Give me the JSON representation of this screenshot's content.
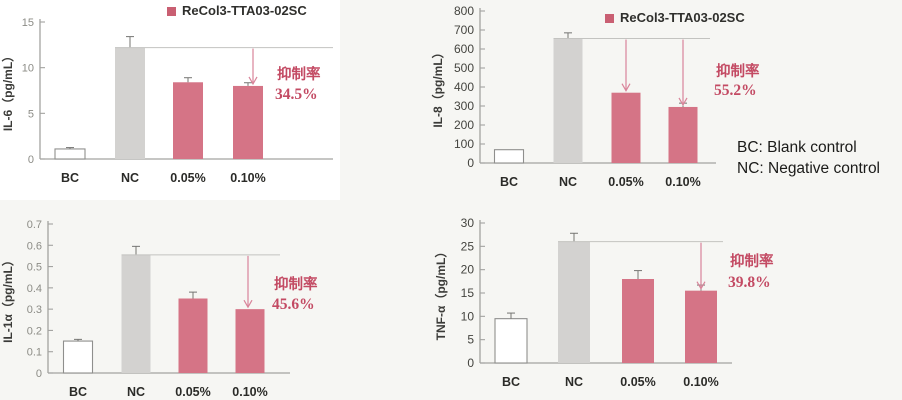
{
  "page": {
    "background": "#f6f6f3",
    "note": {
      "line1": "BC: Blank control",
      "line2": "NC: Negative control"
    }
  },
  "legend": {
    "label": "ReCol3-TTA03-02SC",
    "swatch_color": "#c95f72"
  },
  "colors": {
    "treated_bar": "#d57486",
    "control_bar": "#d3d2d0",
    "blank_bar_fill": "#ffffff",
    "blank_bar_stroke": "#8f8f8d",
    "axis": "#a3a3a0",
    "ref_line": "#c3c3c0",
    "arrow": "#d9849a",
    "annotation_text": "#c34a63",
    "error_bar": "#757572",
    "category_text": "#2b2b28",
    "ylabel_text": "#3b3b38"
  },
  "chart_data": [
    {
      "id": "il6",
      "type": "bar",
      "ylabel": "IL-6（pg/mL）",
      "categories": [
        "BC",
        "NC",
        "0.05%",
        "0.10%"
      ],
      "values": [
        1.1,
        12.2,
        8.4,
        8.0
      ],
      "errors": [
        0.15,
        1.2,
        0.5,
        0.35
      ],
      "bar_roles": [
        "blank",
        "control",
        "treated",
        "treated"
      ],
      "ylim": [
        0,
        15
      ],
      "ytick_step": 5,
      "ytick_decimals": 0,
      "annotation": {
        "label": "抑制率",
        "value": "34.5%"
      },
      "arrow_targets": [
        3
      ],
      "reference_from": 1,
      "legend_visible": true
    },
    {
      "id": "il8",
      "type": "bar",
      "ylabel": "IL-8（pg/mL）",
      "categories": [
        "BC",
        "NC",
        "0.05%",
        "0.10%"
      ],
      "values": [
        70,
        655,
        370,
        295
      ],
      "errors": [
        0,
        30,
        0,
        20
      ],
      "bar_roles": [
        "blank",
        "control",
        "treated",
        "treated"
      ],
      "ylim": [
        0,
        800
      ],
      "ytick_step": 100,
      "ytick_decimals": 0,
      "annotation": {
        "label": "抑制率",
        "value": "55.2%"
      },
      "arrow_targets": [
        2,
        3
      ],
      "reference_from": 1,
      "legend_visible": true
    },
    {
      "id": "il1a",
      "type": "bar",
      "ylabel": "IL-1α（pg/mL）",
      "categories": [
        "BC",
        "NC",
        "0.05%",
        "0.10%"
      ],
      "values": [
        0.15,
        0.555,
        0.35,
        0.3
      ],
      "errors": [
        0.008,
        0.04,
        0.03,
        0
      ],
      "bar_roles": [
        "blank",
        "control",
        "treated",
        "treated"
      ],
      "ylim": [
        0,
        0.7
      ],
      "ytick_step": 0.1,
      "ytick_decimals": 1,
      "annotation": {
        "label": "抑制率",
        "value": "45.6%"
      },
      "arrow_targets": [
        3
      ],
      "reference_from": 1,
      "legend_visible": false
    },
    {
      "id": "tnfa",
      "type": "bar",
      "ylabel": "TNF-α（pg/mL）",
      "categories": [
        "BC",
        "NC",
        "0.05%",
        "0.10%"
      ],
      "values": [
        9.5,
        26,
        18,
        15.5
      ],
      "errors": [
        1.2,
        1.8,
        1.8,
        1.2
      ],
      "bar_roles": [
        "blank",
        "control",
        "treated",
        "treated"
      ],
      "ylim": [
        0,
        30
      ],
      "ytick_step": 5,
      "ytick_decimals": 0,
      "annotation": {
        "label": "抑制率",
        "value": "39.8%"
      },
      "arrow_targets": [
        3
      ],
      "reference_from": 1,
      "legend_visible": false
    }
  ]
}
